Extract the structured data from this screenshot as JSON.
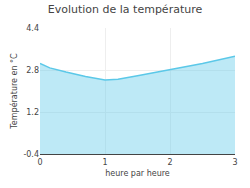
{
  "chart_data": {
    "type": "area",
    "title": "Evolution de la température",
    "x_label": "heure par heure",
    "y_label": "Température en °C",
    "x": [
      0,
      0.15,
      0.4,
      0.7,
      1.0,
      1.2,
      1.5,
      2.0,
      2.5,
      3.0
    ],
    "values": [
      3.05,
      2.88,
      2.72,
      2.55,
      2.42,
      2.45,
      2.58,
      2.82,
      3.05,
      3.32
    ],
    "color": "#5bc8e8",
    "xlim": [
      0,
      3
    ],
    "xticks": [
      0,
      1,
      2,
      3
    ],
    "ylim": [
      -0.4,
      4.4
    ],
    "yticks": [
      -0.4,
      1.2,
      2.8,
      4.4
    ],
    "grid": true
  }
}
